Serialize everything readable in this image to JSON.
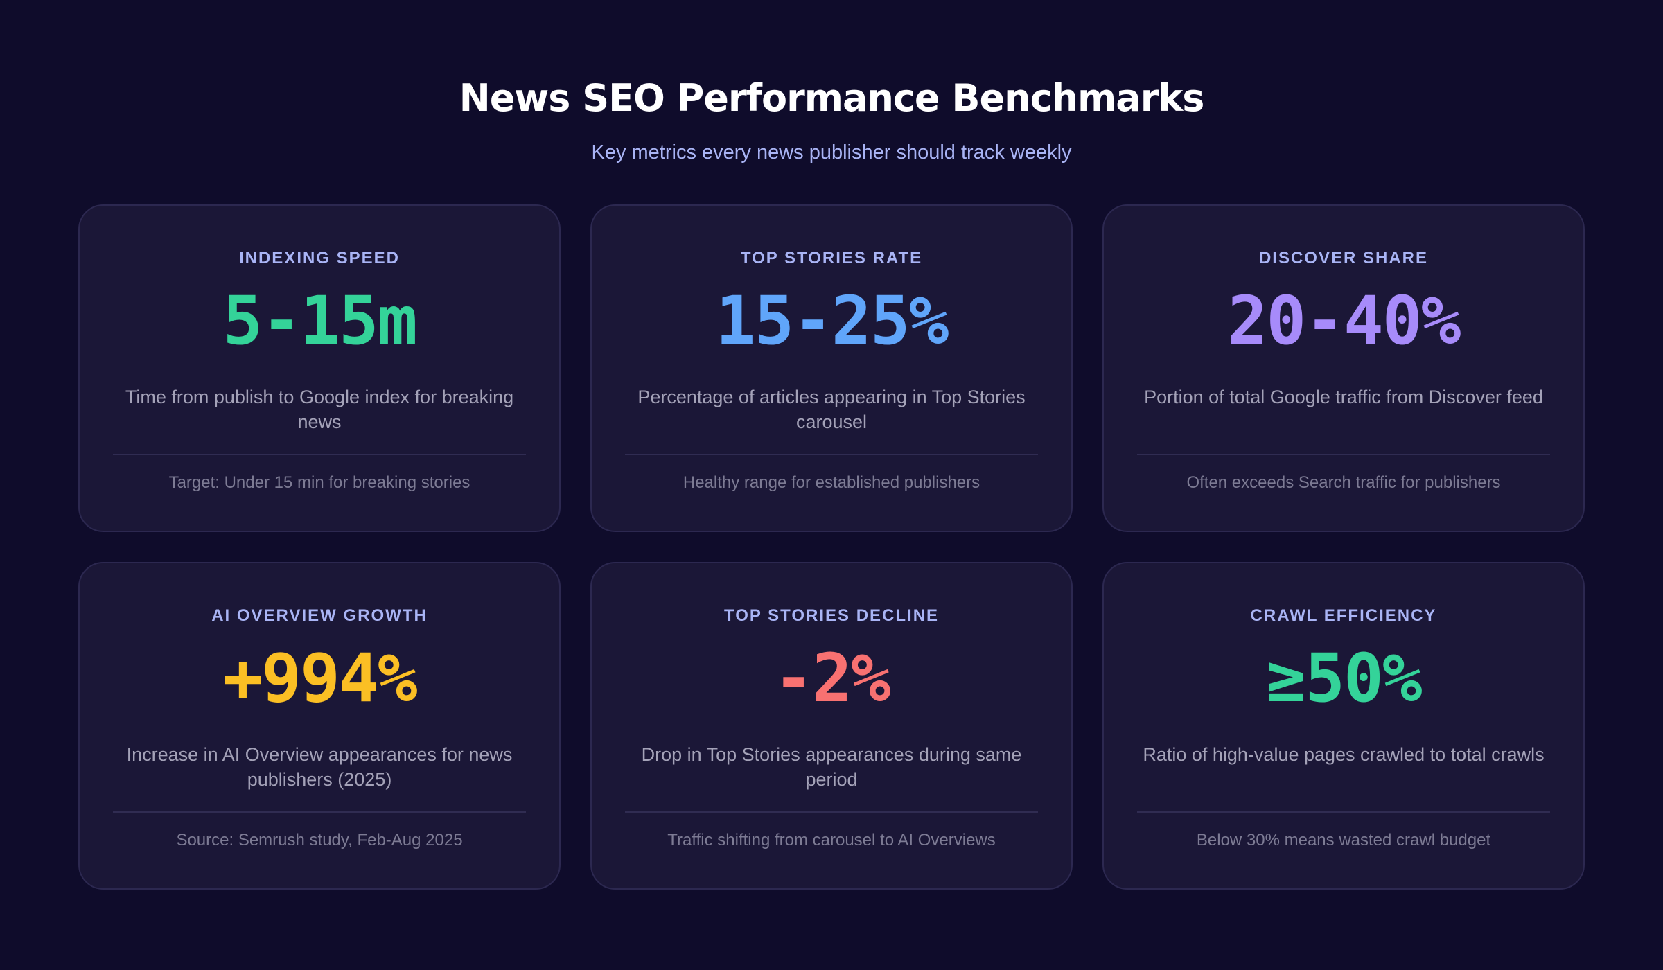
{
  "header": {
    "title": "News SEO Performance Benchmarks",
    "subtitle": "Key metrics every news publisher should track weekly"
  },
  "cards": [
    {
      "label": "INDEXING SPEED",
      "value": "5-15m",
      "description": "Time from publish to Google index for breaking news",
      "note": "Target: Under 15 min for breaking stories"
    },
    {
      "label": "TOP STORIES RATE",
      "value": "15-25%",
      "description": "Percentage of articles appearing in Top Stories carousel",
      "note": "Healthy range for established publishers"
    },
    {
      "label": "DISCOVER SHARE",
      "value": "20-40%",
      "description": "Portion of total Google traffic from Discover feed",
      "note": "Often exceeds Search traffic for publishers"
    },
    {
      "label": "AI OVERVIEW GROWTH",
      "value": "+994%",
      "description": "Increase in AI Overview appearances for news publishers (2025)",
      "note": "Source: Semrush study, Feb-Aug 2025"
    },
    {
      "label": "TOP STORIES DECLINE",
      "value": "-2%",
      "description": "Drop in Top Stories appearances during same period",
      "note": "Traffic shifting from carousel to AI Overviews"
    },
    {
      "label": "CRAWL EFFICIENCY",
      "value": "≥50%",
      "description": "Ratio of high-value pages crawled to total crawls",
      "note": "Below 30% means wasted crawl budget"
    }
  ]
}
